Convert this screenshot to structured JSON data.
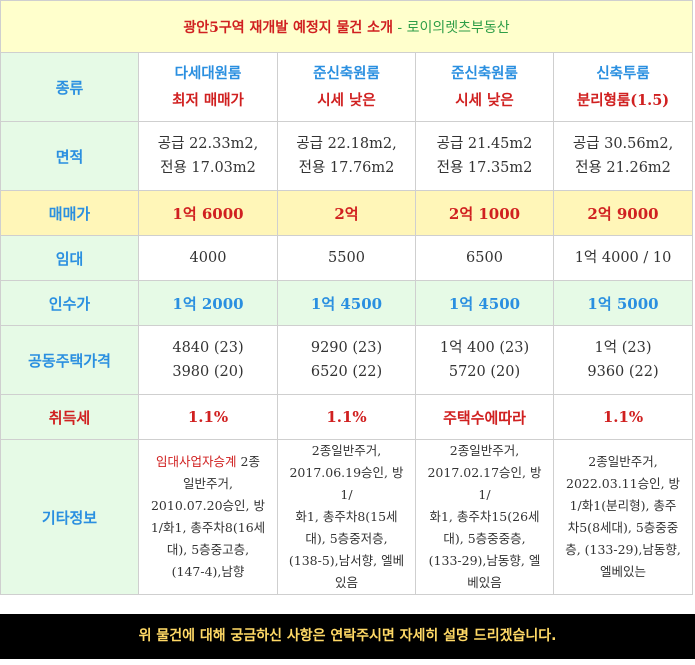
{
  "title": {
    "main": "광안5구역 재개발 예정지 물건 소개",
    "separator": " - ",
    "sub": "로이의렛츠부동산"
  },
  "row_labels": {
    "type": "종류",
    "area": "면적",
    "price": "매매가",
    "rent": "임대",
    "takeover": "인수가",
    "public_price": "공동주택가격",
    "acq_tax": "취득세",
    "etc": "기타정보"
  },
  "listings": [
    {
      "type_line1": "다세대원룸",
      "type_line2": "최저 매매가",
      "area_supply": "공급 22.33m2,",
      "area_exclusive": "전용 17.03m2",
      "price": "1억 6000",
      "rent": "4000",
      "takeover": "1억 2000",
      "public_price_1": "4840 (23)",
      "public_price_2": "3980 (20)",
      "acq_tax": "1.1%",
      "etc_highlight": "임대사업자승계",
      "etc_lines": [
        " 2종",
        "일반주거,",
        "2010.07.20승인, 방",
        "1/화1, 총주차8(16세",
        "대), 5층중고층,",
        "(147-4),남향"
      ]
    },
    {
      "type_line1": "준신축원룸",
      "type_line2": "시세 낮은",
      "area_supply": "공급 22.18m2,",
      "area_exclusive": "전용 17.76m2",
      "price": "2억",
      "rent": "5500",
      "takeover": "1억 4500",
      "public_price_1": "9290 (23)",
      "public_price_2": "6520 (22)",
      "acq_tax": "1.1%",
      "etc_highlight": "",
      "etc_lines": [
        "2종일반주거,",
        "2017.06.19승인, 방1/",
        "화1, 총주차8(15세",
        "대), 5층중저층,",
        "(138-5),남서향, 엘베",
        "있음"
      ]
    },
    {
      "type_line1": "준신축원룸",
      "type_line2": "시세 낮은",
      "area_supply": "공급 21.45m2",
      "area_exclusive": "전용 17.35m2",
      "price": "2억 1000",
      "rent": "6500",
      "takeover": "1억 4500",
      "public_price_1": "1억 400 (23)",
      "public_price_2": "5720 (20)",
      "acq_tax": "주택수에따라",
      "etc_highlight": "",
      "etc_lines": [
        "2종일반주거,",
        "2017.02.17승인, 방1/",
        "화1, 총주차15(26세",
        "대), 5층중중층,",
        "(133-29),남동향, 엘",
        "베있음"
      ]
    },
    {
      "type_line1": "신축투룸",
      "type_line2": "분리형룸(1.5)",
      "area_supply": "공급 30.56m2,",
      "area_exclusive": "전용 21.26m2",
      "price": "2억 9000",
      "rent": "1억 4000 / 10",
      "takeover": "1억 5000",
      "public_price_1": "1억 (23)",
      "public_price_2": "9360 (22)",
      "acq_tax": "1.1%",
      "etc_highlight": "",
      "etc_lines": [
        "2종일반주거,",
        "2022.03.11승인, 방",
        "1/화1(분리형), 총주",
        "차5(8세대), 5층중중",
        "층, (133-29),남동향,",
        "엘베있는"
      ]
    }
  ],
  "footer": "위 물건에 대해 궁금하신 사항은 연락주시면 자세히 설명 드리겠습니다.",
  "colors": {
    "title_bg": "#ffffcc",
    "label_bg": "#e6fae6",
    "price_bg": "#fff6b8",
    "accent_red": "#d02020",
    "accent_blue": "#2a8fe0",
    "accent_green": "#2e9e47",
    "footer_bg": "#000000",
    "footer_text": "#ffd966"
  }
}
